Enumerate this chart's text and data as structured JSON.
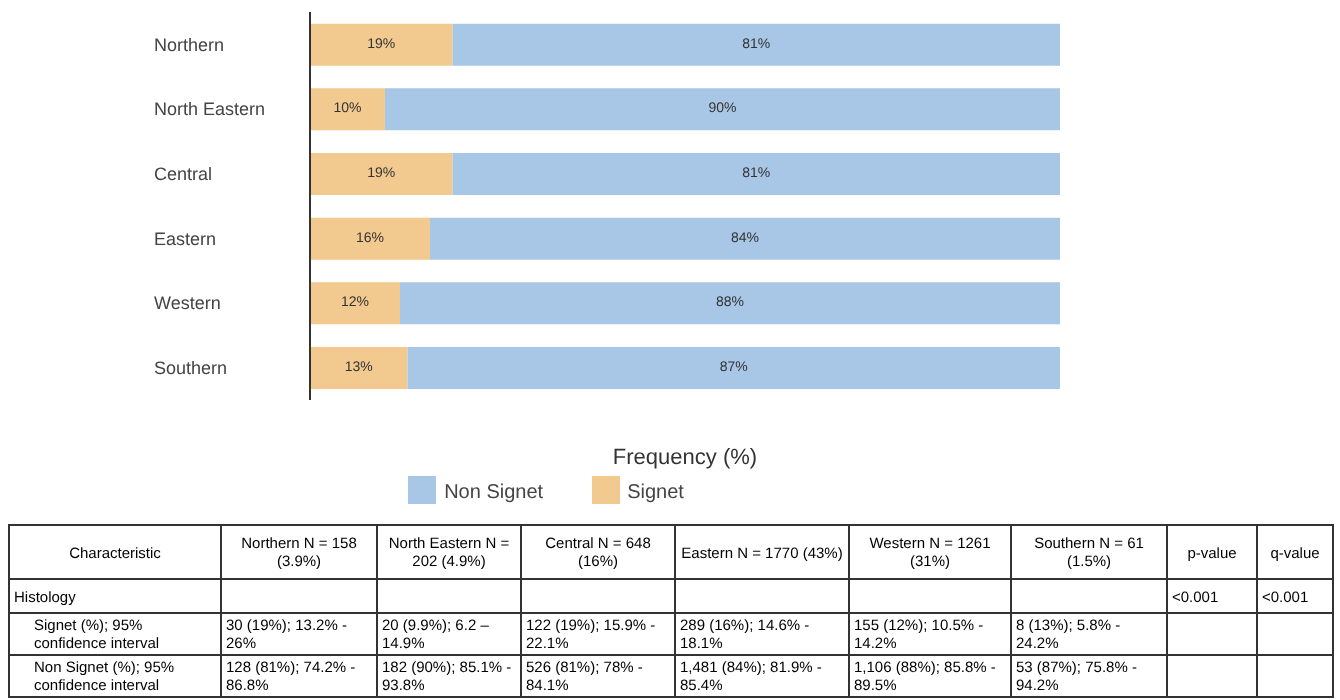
{
  "chart_data": {
    "type": "bar",
    "orientation": "horizontal",
    "stacked": true,
    "xlabel": "Frequency (%)",
    "categories": [
      "Northern",
      "North Eastern",
      "Central",
      "Eastern",
      "Western",
      "Southern"
    ],
    "series": [
      {
        "name": "Signet",
        "color": "#f2c98e",
        "values": [
          19,
          10,
          19,
          16,
          12,
          13
        ],
        "value_labels": [
          "19%",
          "10%",
          "19%",
          "16%",
          "12%",
          "13%"
        ]
      },
      {
        "name": "Non Signet",
        "color": "#a8c6e6",
        "values": [
          81,
          90,
          81,
          84,
          88,
          87
        ],
        "value_labels": [
          "81%",
          "90%",
          "81%",
          "84%",
          "88%",
          "87%"
        ]
      }
    ],
    "xlim": [
      0,
      100
    ],
    "tick_labels": "y",
    "legend": "bottom",
    "grid": false,
    "annotations": [
      "Characteristic",
      "Northern N = 158 (3.9%)",
      "North Eastern N = 202 (4.9%)",
      "Central N = 648 (16%)",
      "Eastern N = 1770 (43%)",
      "Western N = 1261 (31%)",
      "Southern N = 61 (1.5%)",
      "p-value",
      "q-value",
      "Histology",
      "<0.001",
      "<0.001",
      "Signet (%); 95% confidence interval",
      "30 (19%); 13.2% - 26%",
      "20 (9.9%); 6.2 – 14.9%",
      "122 (19%); 15.9% - 22.1%",
      "289 (16%); 14.6% - 18.1%",
      "155 (12%); 10.5% - 14.2%",
      "8 (13%); 5.8% - 24.2%",
      "Non Signet (%); 95% confidence interval",
      "128 (81%); 74.2% - 86.8%",
      "182 (90%); 85.1% - 93.8%",
      "526 (81%); 78% - 84.1%",
      "1,481 (84%); 81.9% - 85.4%",
      "1,106 (88%); 85.8% - 89.5%",
      "53 (87%); 75.8% - 94.2%"
    ]
  }
}
